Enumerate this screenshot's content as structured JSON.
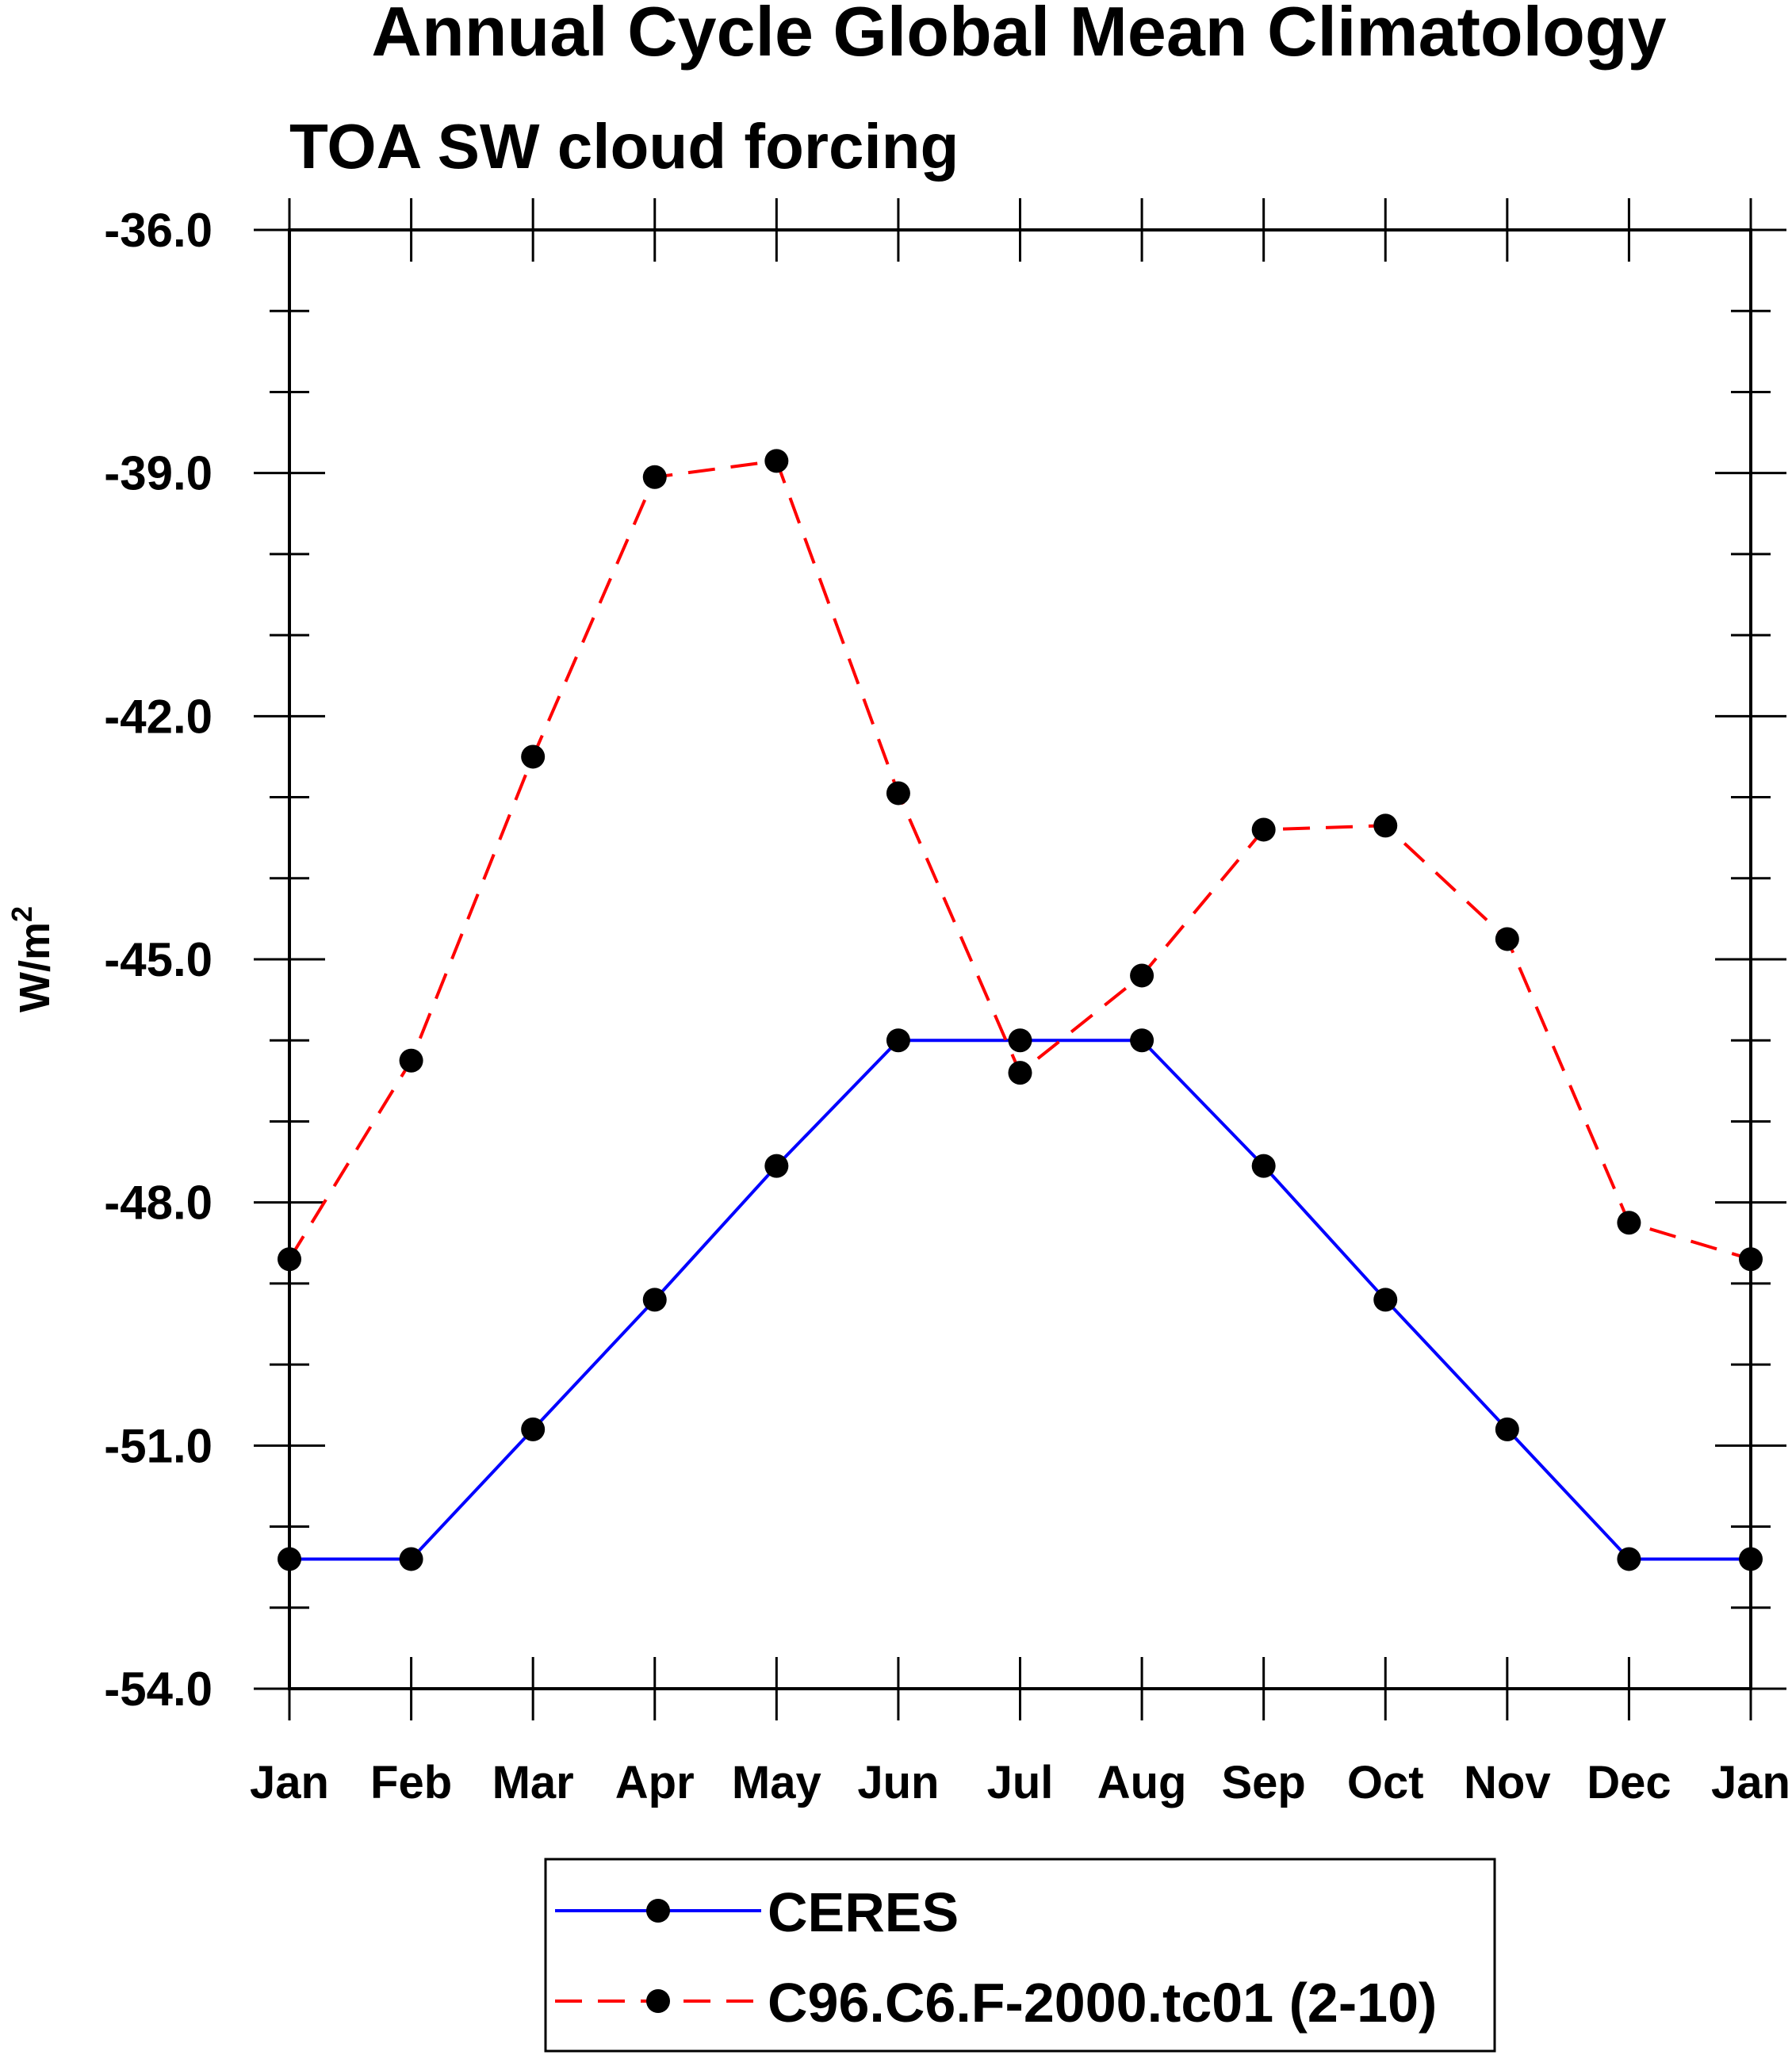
{
  "chart_data": {
    "type": "line",
    "title": "Annual Cycle Global Mean Climatology",
    "subtitle": "TOA SW cloud forcing",
    "xlabel": "",
    "ylabel_main": "W/m",
    "ylabel_sup": "2",
    "ylim": [
      -54.0,
      -36.0
    ],
    "yticks": [
      -54.0,
      -51.0,
      -48.0,
      -45.0,
      -42.0,
      -39.0,
      -36.0
    ],
    "ytick_labels": [
      "-54.0",
      "-51.0",
      "-48.0",
      "-45.0",
      "-42.0",
      "-39.0",
      "-36.0"
    ],
    "yminor_step": 1.0,
    "categories": [
      "Jan",
      "Feb",
      "Mar",
      "Apr",
      "May",
      "Jun",
      "Jul",
      "Aug",
      "Sep",
      "Oct",
      "Nov",
      "Dec",
      "Jan"
    ],
    "legend_position": "bottom-center",
    "series": [
      {
        "name": "CERES",
        "color": "#0000ff",
        "line_style": "solid",
        "marker": "filled-circle",
        "marker_color": "#000000",
        "values": [
          -52.4,
          -52.4,
          -50.8,
          -49.2,
          -47.55,
          -46.0,
          -46.0,
          -46.0,
          -47.55,
          -49.2,
          -50.8,
          -52.4,
          -52.4
        ]
      },
      {
        "name": "C96.C6.F-2000.tc01 (2-10)",
        "color": "#ff0000",
        "line_style": "dashed",
        "marker": "filled-circle",
        "marker_color": "#000000",
        "values": [
          -48.7,
          -46.25,
          -42.5,
          -39.05,
          -38.85,
          -42.95,
          -46.4,
          -45.2,
          -43.4,
          -43.35,
          -44.75,
          -48.25,
          -48.7
        ]
      }
    ]
  }
}
